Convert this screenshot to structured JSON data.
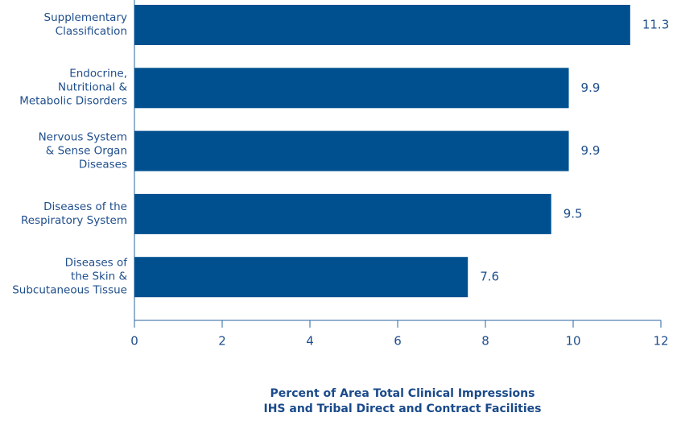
{
  "chart_data": {
    "type": "barh",
    "categories": [
      "Supplementary\nClassification",
      "Endocrine,\nNutritional &\nMetabolic Disorders",
      "Nervous System\n& Sense Organ\nDiseases",
      "Diseases of the\nRespiratory System",
      "Diseases of\nthe Skin &\nSubcutaneous Tissue"
    ],
    "values": [
      11.3,
      9.9,
      9.9,
      9.5,
      7.6
    ],
    "color": "#00508f",
    "xlim": [
      0,
      12
    ],
    "xticks": [
      0,
      2,
      4,
      6,
      8,
      10,
      12
    ],
    "xlabel": "Percent of Area Total Clinical Impressions\nIHS and Tribal Direct and Contract Facilities"
  }
}
